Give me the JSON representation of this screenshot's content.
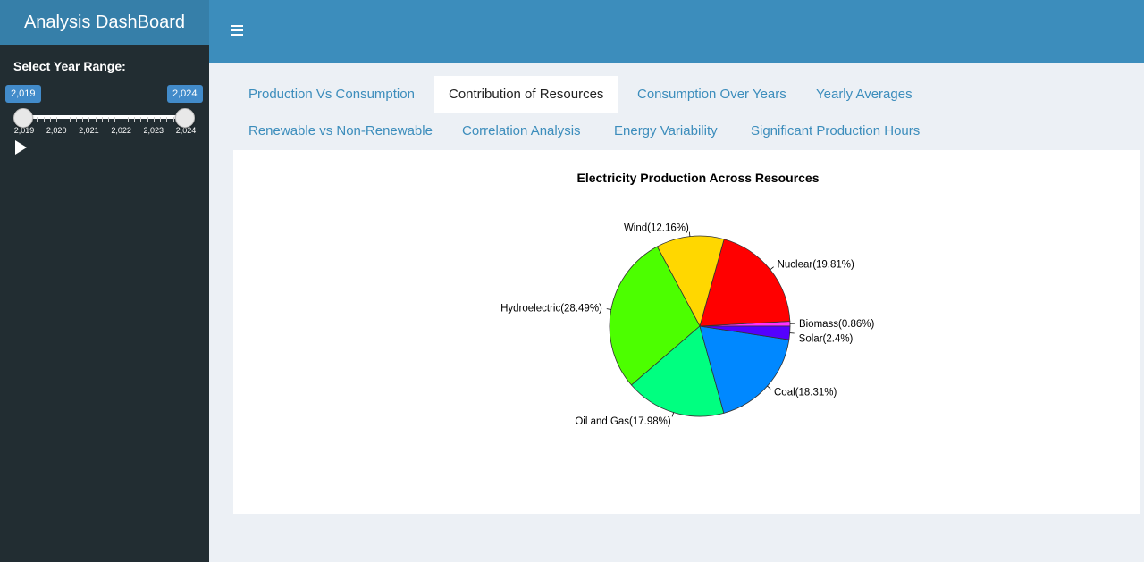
{
  "app": {
    "title": "Analysis DashBoard"
  },
  "sidebar": {
    "slider_label": "Select Year Range:",
    "range": {
      "from": "2,019",
      "to": "2,024"
    },
    "ticks": [
      "2,019",
      "2,020",
      "2,021",
      "2,022",
      "2,023",
      "2,024"
    ]
  },
  "tabs": [
    {
      "label": "Production Vs Consumption"
    },
    {
      "label": "Contribution of Resources"
    },
    {
      "label": "Consumption Over Years"
    },
    {
      "label": "Yearly Averages"
    },
    {
      "label": "Renewable vs Non-Renewable"
    },
    {
      "label": "Correlation Analysis"
    },
    {
      "label": "Energy Variability"
    },
    {
      "label": "Significant Production Hours"
    }
  ],
  "active_tab": "Contribution of Resources",
  "chart_data": {
    "type": "pie",
    "title": "Electricity Production Across Resources",
    "slices": [
      {
        "label": "Biomass(0.86%)",
        "value": 0.86,
        "color": "#ff33ff"
      },
      {
        "label": "Nuclear(19.81%)",
        "value": 19.81,
        "color": "#ff0000"
      },
      {
        "label": "Wind(12.16%)",
        "value": 12.16,
        "color": "#ffd700"
      },
      {
        "label": "Hydroelectric(28.49%)",
        "value": 28.49,
        "color": "#4cff00"
      },
      {
        "label": "Oil and Gas(17.98%)",
        "value": 17.98,
        "color": "#00ff80"
      },
      {
        "label": "Coal(18.31%)",
        "value": 18.31,
        "color": "#0088ff"
      },
      {
        "label": "Solar(2.4%)",
        "value": 2.4,
        "color": "#5500ff"
      }
    ]
  }
}
